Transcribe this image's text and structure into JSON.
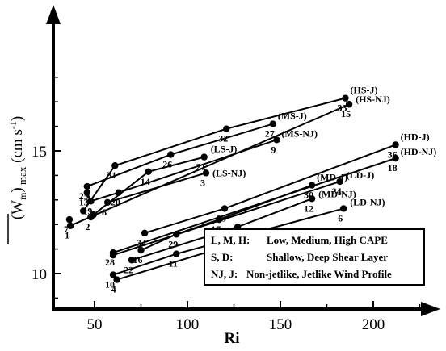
{
  "chart_data": {
    "type": "scatter",
    "title": "",
    "xlabel": "Ri",
    "ylabel": {
      "main": "(W",
      "sub1": "m",
      "close": ")",
      "sub2": " max",
      "units": " (cm s",
      "exp": "-1",
      "end": ")"
    },
    "xlim": [
      35,
      225
    ],
    "ylim": [
      8,
      18.9
    ],
    "x_ticks": [
      50,
      100,
      150,
      200
    ],
    "y_ticks": [
      10,
      15
    ],
    "grid": false,
    "legend_position": "bottom-right",
    "legend": [
      {
        "keys": "L, M, H:",
        "text": "Low, Medium, High CAPE"
      },
      {
        "keys": "S, D:",
        "text": "Shallow, Deep Shear Layer"
      },
      {
        "keys": "NJ, J:",
        "text": "Non-jetlike, Jetlike Wind Profile"
      }
    ],
    "series": [
      {
        "name": "(HS-J)",
        "points": [
          [
            44,
            12.55
          ],
          [
            61,
            14.4
          ],
          [
            121,
            15.9
          ],
          [
            185,
            17.15
          ]
        ],
        "labels": [
          "",
          "31",
          "32",
          "33"
        ],
        "tag_dx": 6,
        "tag_dy": -6
      },
      {
        "name": "(HS-NJ)",
        "points": [
          [
            36.5,
            12.2
          ],
          [
            37,
            11.95
          ],
          [
            187,
            16.9
          ]
        ],
        "labels": [
          "7",
          "1",
          "15"
        ],
        "tag_dx": 8,
        "tag_dy": -2
      },
      {
        "name": "(MS-J)",
        "points": [
          [
            46,
            13.55
          ],
          [
            91,
            14.85
          ],
          [
            146,
            16.1
          ]
        ],
        "labels": [
          "25",
          "26",
          "27"
        ],
        "tag_dx": 6,
        "tag_dy": -6
      },
      {
        "name": "(MS-NJ)",
        "points": [
          [
            46,
            13.3
          ],
          [
            48,
            12.95
          ],
          [
            63,
            13.3
          ],
          [
            148,
            15.45
          ]
        ],
        "labels": [
          "13",
          "19",
          "20",
          "9"
        ],
        "tag_dx": 6,
        "tag_dy": -4
      },
      {
        "name": "(LS-J)",
        "points": [
          [
            49.5,
            12.4
          ],
          [
            79,
            14.15
          ],
          [
            109,
            14.75
          ]
        ],
        "labels": [
          "",
          "14",
          "21"
        ],
        "tag_dx": 8,
        "tag_dy": -6
      },
      {
        "name": "(LS-NJ)",
        "points": [
          [
            57,
            12.9
          ],
          [
            110,
            14.1
          ]
        ],
        "labels": [
          "8",
          "3"
        ],
        "tag_dx": 8,
        "tag_dy": 4
      },
      {
        "name": "(HD-J)",
        "points": [
          [
            77,
            11.65
          ],
          [
            120,
            12.65
          ],
          [
            212,
            15.25
          ]
        ],
        "labels": [
          "34",
          "35",
          "36"
        ],
        "tag_dx": 6,
        "tag_dy": -6
      },
      {
        "name": "(HD-NJ)",
        "points": [
          [
            60,
            10.85
          ],
          [
            212,
            14.7
          ]
        ],
        "labels": [
          "28",
          "18"
        ],
        "tag_dx": 6,
        "tag_dy": -4
      },
      {
        "name": "(MD-J)",
        "points": [
          [
            75,
            10.95
          ],
          [
            94,
            11.6
          ],
          [
            117,
            12.2
          ],
          [
            167,
            13.6
          ]
        ],
        "labels": [
          "16",
          "29",
          "17",
          "30"
        ],
        "tag_dx": 6,
        "tag_dy": -6
      },
      {
        "name": "(LD-J)",
        "points": [
          [
            60,
            10.75
          ],
          [
            182,
            13.75
          ]
        ],
        "labels": [
          "",
          "24"
        ],
        "tag_dx": 8,
        "tag_dy": -4
      },
      {
        "name": "(MD-NJ)",
        "points": [
          [
            70,
            10.55
          ],
          [
            127,
            11.9
          ],
          [
            167,
            13.05
          ]
        ],
        "labels": [
          "22",
          "23",
          "12"
        ],
        "tag_dx": 8,
        "tag_dy": -2
      },
      {
        "name": "(LD-NJ)",
        "points": [
          [
            60,
            9.95
          ],
          [
            94,
            10.8
          ],
          [
            184,
            12.65
          ]
        ],
        "labels": [
          "10",
          "11",
          "6"
        ],
        "tag_dx": 8,
        "tag_dy": -4
      },
      {
        "name": "",
        "points": [
          [
            62,
            9.75
          ],
          [
            127,
            11.25
          ]
        ],
        "labels": [
          "4",
          "5"
        ],
        "tag_dx": 0,
        "tag_dy": 0
      },
      {
        "name": "",
        "points": [
          [
            48,
            12.3
          ]
        ],
        "labels": [
          "2"
        ],
        "tag_dx": 0,
        "tag_dy": 0
      }
    ]
  }
}
